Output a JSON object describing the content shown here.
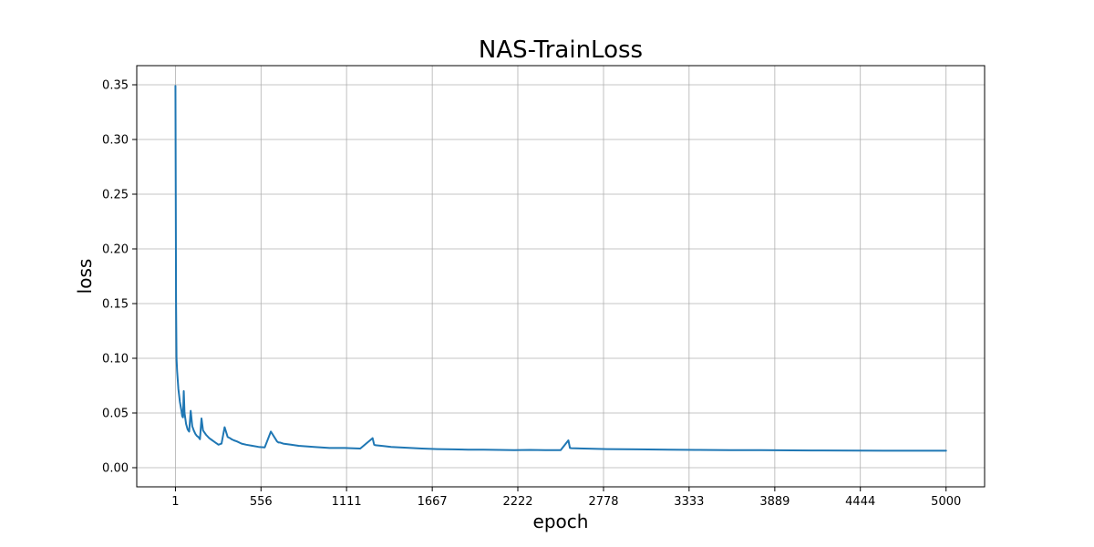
{
  "chart_data": {
    "type": "line",
    "title": "NAS-TrainLoss",
    "xlabel": "epoch",
    "ylabel": "loss",
    "xlim": [
      -250,
      5250
    ],
    "ylim": [
      -0.0175,
      0.3675
    ],
    "grid": true,
    "legend": "none",
    "colors": {
      "line": "#1f77b4",
      "grid": "#b0b0b0",
      "axes": "#000000"
    },
    "xticks": [
      1,
      556,
      1111,
      1667,
      2222,
      2778,
      3333,
      3889,
      4444,
      5000
    ],
    "xtick_labels": [
      "1",
      "556",
      "1111",
      "1667",
      "2222",
      "2778",
      "3333",
      "3889",
      "4444",
      "5000"
    ],
    "yticks": [
      0.0,
      0.05,
      0.1,
      0.15,
      0.2,
      0.25,
      0.3,
      0.35
    ],
    "ytick_labels": [
      "0.00",
      "0.05",
      "0.10",
      "0.15",
      "0.20",
      "0.25",
      "0.30",
      "0.35"
    ],
    "series": [
      {
        "x": [
          1,
          3,
          5,
          8,
          12,
          20,
          30,
          40,
          45,
          50,
          55,
          60,
          70,
          80,
          90,
          100,
          110,
          120,
          130,
          140,
          150,
          155,
          160,
          170,
          180,
          200,
          220,
          240,
          250,
          260,
          270,
          280,
          300,
          320,
          340,
          355,
          365,
          380,
          400,
          430,
          460,
          500,
          540,
          580,
          620,
          660,
          670,
          680,
          700,
          750,
          800,
          900,
          1000,
          1100,
          1200,
          1280,
          1290,
          1300,
          1350,
          1400,
          1500,
          1600,
          1700,
          1800,
          1900,
          2000,
          2100,
          2200,
          2300,
          2400,
          2500,
          2550,
          2560,
          2570,
          2650,
          2800,
          3000,
          3200,
          3400,
          3600,
          3800,
          4000,
          4200,
          4400,
          4600,
          4800,
          5000
        ],
        "y": [
          0.349,
          0.25,
          0.15,
          0.1,
          0.088,
          0.072,
          0.06,
          0.052,
          0.047,
          0.046,
          0.07,
          0.05,
          0.04,
          0.035,
          0.033,
          0.052,
          0.038,
          0.034,
          0.031,
          0.029,
          0.028,
          0.027,
          0.026,
          0.045,
          0.034,
          0.03,
          0.027,
          0.025,
          0.024,
          0.023,
          0.022,
          0.021,
          0.022,
          0.037,
          0.028,
          0.027,
          0.026,
          0.025,
          0.024,
          0.022,
          0.021,
          0.02,
          0.019,
          0.0185,
          0.033,
          0.024,
          0.023,
          0.023,
          0.022,
          0.021,
          0.02,
          0.019,
          0.018,
          0.018,
          0.0175,
          0.027,
          0.021,
          0.0205,
          0.0198,
          0.019,
          0.0182,
          0.0175,
          0.017,
          0.0168,
          0.0165,
          0.0165,
          0.0163,
          0.016,
          0.0162,
          0.016,
          0.016,
          0.025,
          0.018,
          0.0178,
          0.0175,
          0.017,
          0.0168,
          0.0165,
          0.0162,
          0.016,
          0.016,
          0.0158,
          0.0157,
          0.0156,
          0.0155,
          0.0155,
          0.0155
        ]
      }
    ]
  }
}
